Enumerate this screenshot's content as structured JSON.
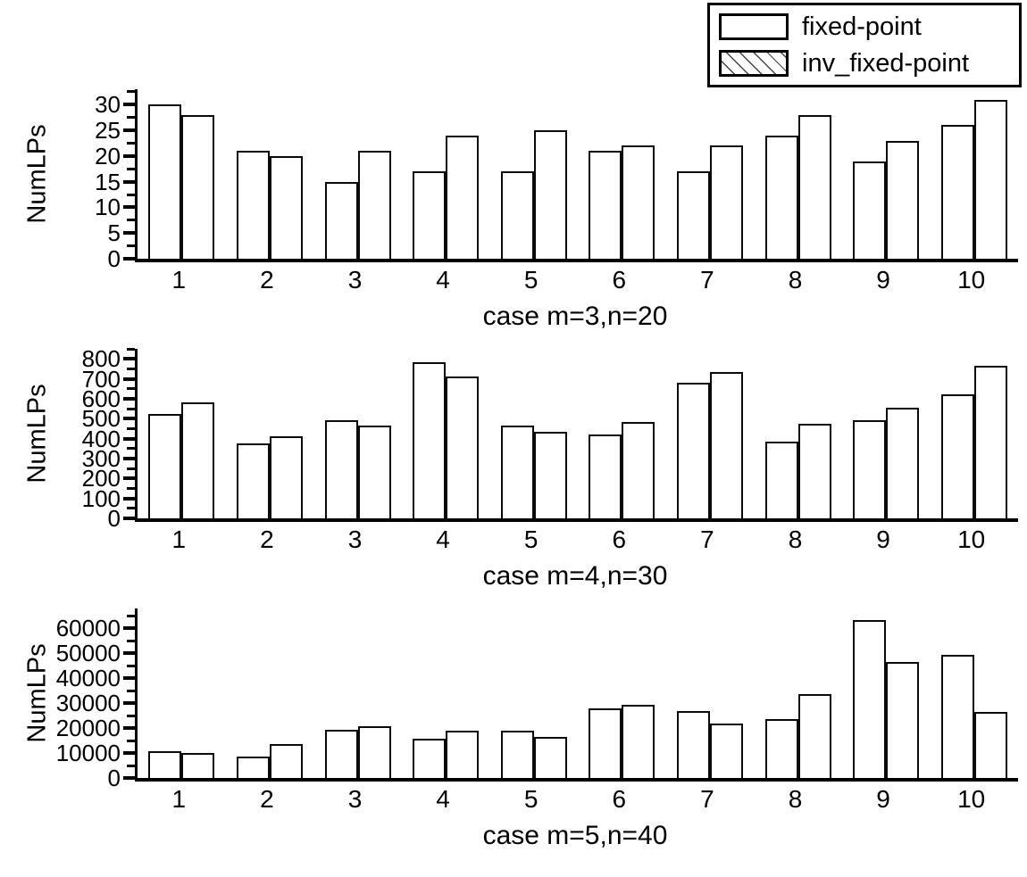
{
  "colors": {
    "background": "#ffffff",
    "bar_fill": "#ffffff",
    "bar_border": "#0a0a0a",
    "hatch_line": "#444444",
    "axis": "#000000",
    "text": "#000000"
  },
  "legend": {
    "position": "top-right",
    "items": [
      {
        "label": "fixed-point",
        "swatch": "solid-white"
      },
      {
        "label": "inv_fixed-point",
        "swatch": "diagonal-hatch"
      }
    ]
  },
  "chart_data": [
    {
      "type": "bar",
      "title": "case m=3,n=20",
      "ylabel": "NumLPs",
      "xlabel": "",
      "categories": [
        "1",
        "2",
        "3",
        "4",
        "5",
        "6",
        "7",
        "8",
        "9",
        "10"
      ],
      "series": [
        {
          "name": "fixed-point",
          "style": "solid",
          "values": [
            30,
            21,
            15,
            17,
            17,
            21,
            17,
            24,
            19,
            26
          ]
        },
        {
          "name": "inv_fixed-point",
          "style": "hatch",
          "values": [
            28,
            20,
            21,
            24,
            25,
            22,
            22,
            28,
            23,
            31
          ]
        }
      ],
      "ylim": [
        0,
        33
      ],
      "yticks": [
        0,
        5,
        10,
        15,
        20,
        25,
        30
      ],
      "ytick_minor_step": 2.5,
      "grid": false
    },
    {
      "type": "bar",
      "title": "case m=4,n=30",
      "ylabel": "NumLPs",
      "xlabel": "",
      "categories": [
        "1",
        "2",
        "3",
        "4",
        "5",
        "6",
        "7",
        "8",
        "9",
        "10"
      ],
      "series": [
        {
          "name": "fixed-point",
          "style": "solid",
          "values": [
            525,
            375,
            490,
            785,
            465,
            420,
            680,
            385,
            490,
            620
          ]
        },
        {
          "name": "inv_fixed-point",
          "style": "hatch",
          "values": [
            580,
            410,
            465,
            710,
            435,
            485,
            735,
            475,
            555,
            765
          ]
        }
      ],
      "ylim": [
        0,
        850
      ],
      "yticks": [
        0,
        100,
        200,
        300,
        400,
        500,
        600,
        700,
        800
      ],
      "ytick_minor_step": 50,
      "grid": false
    },
    {
      "type": "bar",
      "title": "case m=5,n=40",
      "ylabel": "NumLPs",
      "xlabel": "",
      "categories": [
        "1",
        "2",
        "3",
        "4",
        "5",
        "6",
        "7",
        "8",
        "9",
        "10"
      ],
      "series": [
        {
          "name": "fixed-point",
          "style": "solid",
          "values": [
            10700,
            8500,
            19500,
            15700,
            18800,
            27800,
            26700,
            23800,
            63500,
            49500
          ]
        },
        {
          "name": "inv_fixed-point",
          "style": "hatch",
          "values": [
            9900,
            13700,
            20600,
            18800,
            16300,
            29500,
            22000,
            33600,
            46500,
            26600
          ]
        }
      ],
      "ylim": [
        0,
        68000
      ],
      "yticks": [
        0,
        10000,
        20000,
        30000,
        40000,
        50000,
        60000
      ],
      "ytick_minor_step": 5000,
      "grid": false
    }
  ]
}
